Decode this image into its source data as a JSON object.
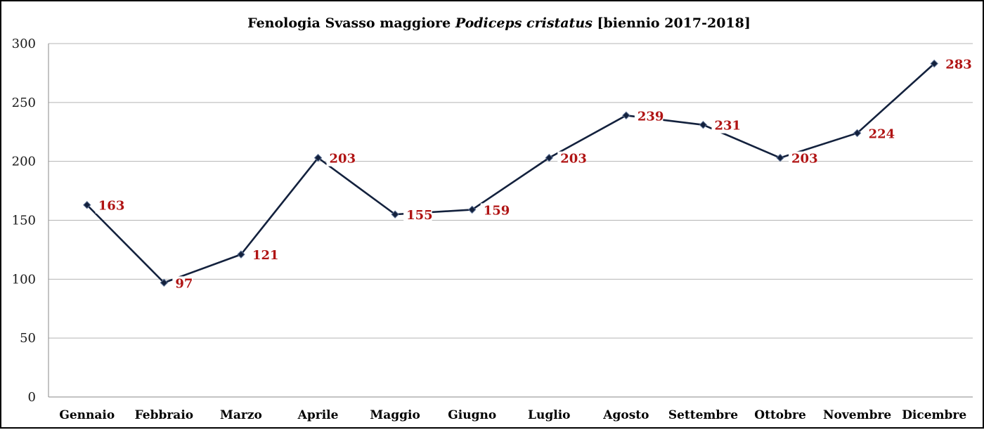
{
  "chart_data": {
    "type": "line",
    "title_parts": {
      "prefix": "Fenologia Svasso maggiore ",
      "italic": "Podiceps cristatus",
      "suffix": " [biennio 2017-2018]"
    },
    "categories": [
      "Gennaio",
      "Febbraio",
      "Marzo",
      "Aprile",
      "Maggio",
      "Giugno",
      "Luglio",
      "Agosto",
      "Settembre",
      "Ottobre",
      "Novembre",
      "Dicembre"
    ],
    "series": [
      {
        "values": [
          163,
          97,
          121,
          203,
          155,
          159,
          203,
          239,
          231,
          203,
          224,
          283
        ]
      }
    ],
    "ylim": [
      0,
      300
    ],
    "yticks": [
      0,
      50,
      100,
      150,
      200,
      250,
      300
    ],
    "grid": true,
    "legend": "none",
    "colors": {
      "line": "#13213d",
      "marker": "#13213d",
      "label": "#b01414",
      "grid": "#b5b5b5"
    }
  }
}
